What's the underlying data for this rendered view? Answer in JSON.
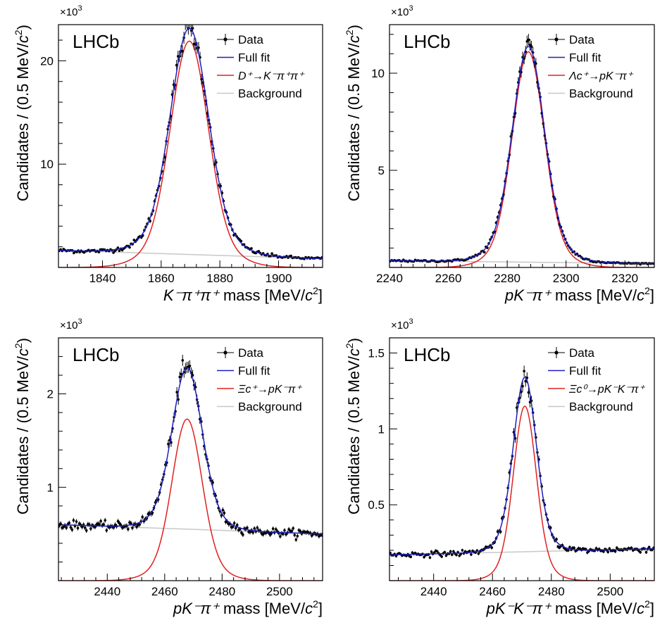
{
  "figure": {
    "colors": {
      "data": "#000000",
      "full_fit": "#1f1fbf",
      "signal": "#e02020",
      "background": "#c8c8c8",
      "frame": "#000000"
    }
  },
  "chart_data": [
    {
      "type": "scatter",
      "label": "LHCb",
      "y_multiplier": "×10",
      "y_multiplier_exp": "3",
      "ylabel_main": "Candidates / (0.5 MeV/",
      "ylabel_c": "c",
      "ylabel_sup": "2",
      "ylabel_end": ")",
      "xlabel_math": "K⁻π⁺π⁺",
      "xlabel_text": " mass [MeV/",
      "xlabel_c": "c",
      "xlabel_sup": "2",
      "xlabel_end": "]",
      "xlim": [
        1825,
        1915
      ],
      "ylim": [
        0,
        23.5
      ],
      "xticks": [
        "1840",
        "1860",
        "1880",
        "1900"
      ],
      "xtick_values": [
        1840,
        1860,
        1880,
        1900
      ],
      "yticks": [
        "10",
        "20"
      ],
      "ytick_values": [
        10,
        20
      ],
      "legend": {
        "data": "Data",
        "full_fit": "Full fit",
        "signal": "D⁺→K⁻π⁺π⁺",
        "background": "Background"
      },
      "model": {
        "mu": 1869.6,
        "sigma": 6.2,
        "amplitude": 21.9,
        "bkg_start": 1.65,
        "bkg_end": 0.85
      },
      "series": [
        {
          "name": "Data",
          "x_start": 1825,
          "x_step": 0.5,
          "values_from": "model"
        }
      ]
    },
    {
      "type": "scatter",
      "label": "LHCb",
      "y_multiplier": "×10",
      "y_multiplier_exp": "3",
      "ylabel_main": "Candidates / (0.5 MeV/",
      "ylabel_c": "c",
      "ylabel_sup": "2",
      "ylabel_end": ")",
      "xlabel_math": "pK⁻π⁺",
      "xlabel_text": " mass [MeV/",
      "xlabel_c": "c",
      "xlabel_sup": "2",
      "xlabel_end": "]",
      "xlim": [
        2240,
        2330
      ],
      "ylim": [
        0,
        12.5
      ],
      "xticks": [
        "2240",
        "2260",
        "2280",
        "2300",
        "2320"
      ],
      "xtick_values": [
        2240,
        2260,
        2280,
        2300,
        2320
      ],
      "yticks": [
        "5",
        "10"
      ],
      "ytick_values": [
        5,
        10
      ],
      "legend": {
        "data": "Data",
        "full_fit": "Full fit",
        "signal": "Λc⁺→pK⁻π⁺",
        "background": "Background"
      },
      "model": {
        "mu": 2287.2,
        "sigma": 5.2,
        "amplitude": 11.1,
        "bkg_start": 0.35,
        "bkg_end": 0.2
      },
      "series": [
        {
          "name": "Data",
          "x_start": 2240,
          "x_step": 0.5,
          "values_from": "model"
        }
      ]
    },
    {
      "type": "scatter",
      "label": "LHCb",
      "y_multiplier": "×10",
      "y_multiplier_exp": "3",
      "ylabel_main": "Candidates / (0.5 MeV/",
      "ylabel_c": "c",
      "ylabel_sup": "2",
      "ylabel_end": ")",
      "xlabel_math": "pK⁻π⁺",
      "xlabel_text": " mass [MeV/",
      "xlabel_c": "c",
      "xlabel_sup": "2",
      "xlabel_end": "]",
      "xlim": [
        2423,
        2515
      ],
      "ylim": [
        0,
        2.6
      ],
      "xticks": [
        "2440",
        "2460",
        "2480",
        "2500"
      ],
      "xtick_values": [
        2440,
        2460,
        2480,
        2500
      ],
      "yticks": [
        "1",
        "2"
      ],
      "ytick_values": [
        1,
        2
      ],
      "legend": {
        "data": "Data",
        "full_fit": "Full fit",
        "signal": "Ξc⁺→pK⁻π⁺",
        "background": "Background"
      },
      "model": {
        "mu": 2467.8,
        "sigma": 5.0,
        "amplitude": 1.73,
        "bkg_start": 0.6,
        "bkg_end": 0.5
      },
      "series": [
        {
          "name": "Data",
          "x_start": 2423,
          "x_step": 0.5,
          "values_from": "model"
        }
      ]
    },
    {
      "type": "scatter",
      "label": "LHCb",
      "y_multiplier": "×10",
      "y_multiplier_exp": "3",
      "ylabel_main": "Candidates / (0.5 MeV/",
      "ylabel_c": "c",
      "ylabel_sup": "2",
      "ylabel_end": ")",
      "xlabel_math": "pK⁻K⁻π⁺",
      "xlabel_text": " mass [MeV/",
      "xlabel_c": "c",
      "xlabel_sup": "2",
      "xlabel_end": "]",
      "xlim": [
        2425,
        2515
      ],
      "ylim": [
        0,
        1.6
      ],
      "xticks": [
        "2440",
        "2460",
        "2480",
        "2500"
      ],
      "xtick_values": [
        2440,
        2460,
        2480,
        2500
      ],
      "yticks": [
        "0.5",
        "1",
        "1.5"
      ],
      "ytick_values": [
        0.5,
        1,
        1.5
      ],
      "legend": {
        "data": "Data",
        "full_fit": "Full fit",
        "signal": "Ξc⁰→pK⁻K⁻π⁺",
        "background": "Background"
      },
      "model": {
        "mu": 2471.0,
        "sigma": 3.7,
        "amplitude": 1.15,
        "bkg_start": 0.17,
        "bkg_end": 0.21
      },
      "series": [
        {
          "name": "Data",
          "x_start": 2425,
          "x_step": 0.5,
          "values_from": "model"
        }
      ]
    }
  ]
}
